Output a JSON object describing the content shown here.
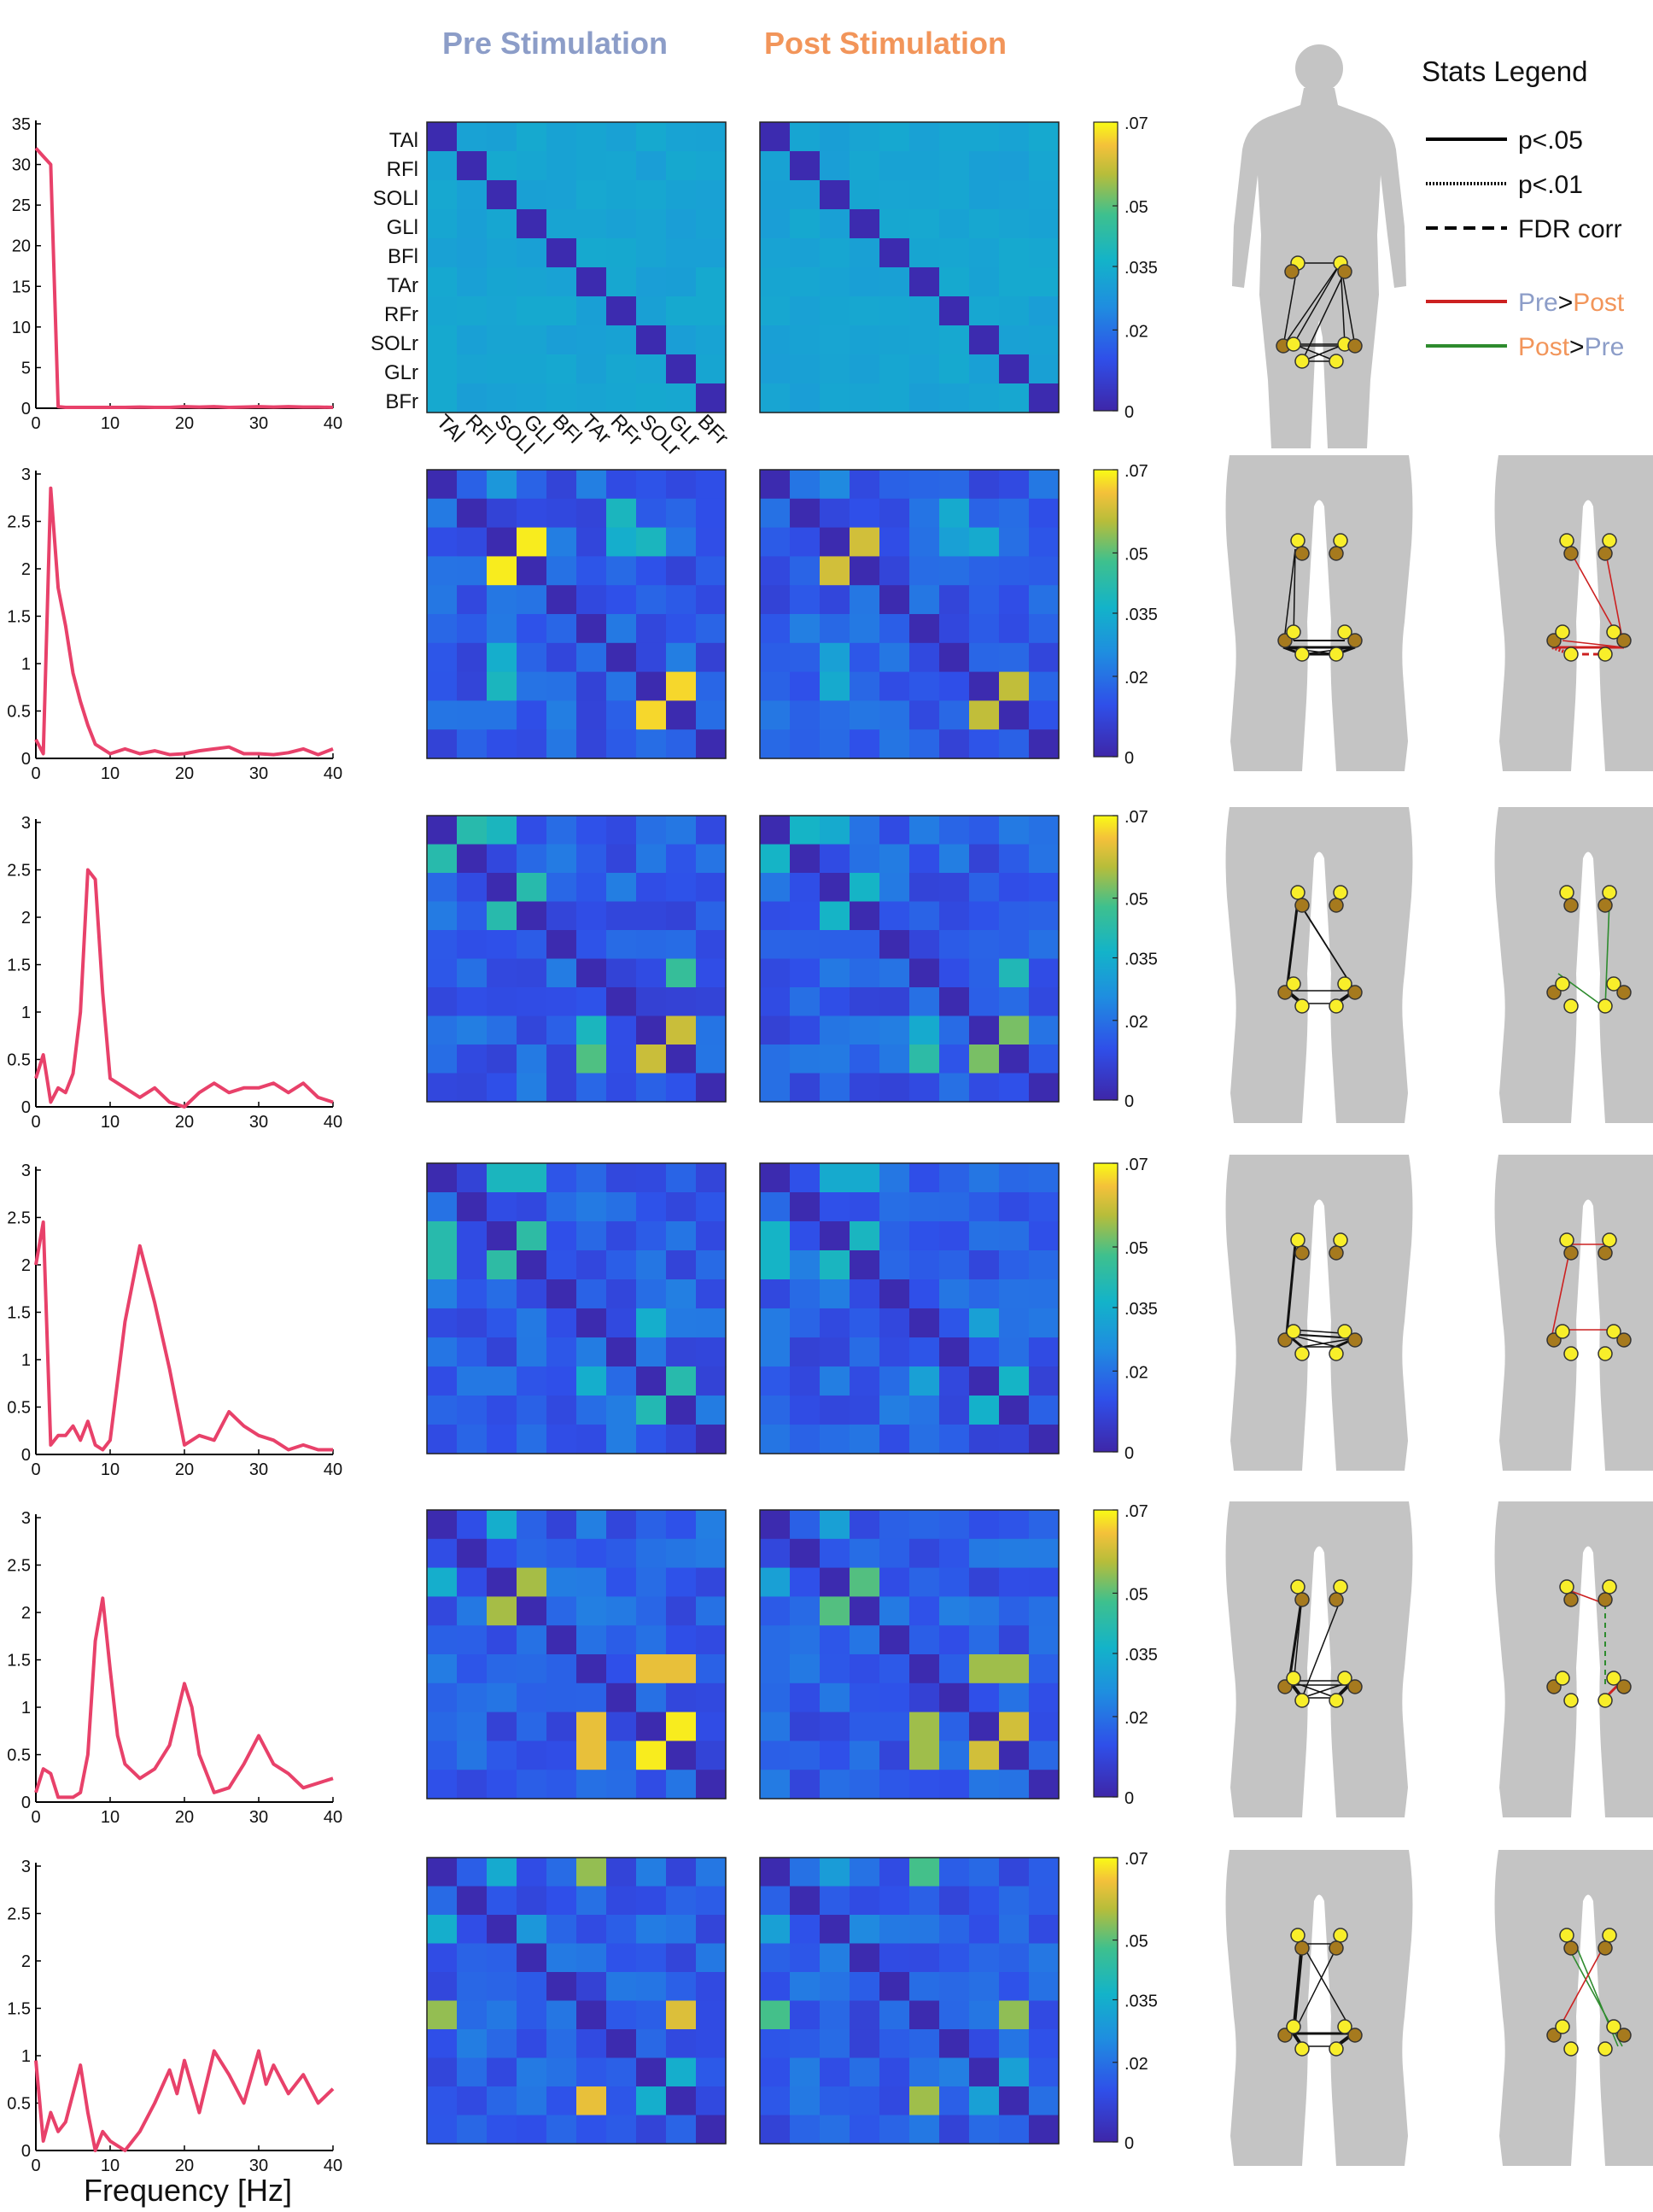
{
  "headers": {
    "pre": "Pre Stimulation",
    "post": "Post Stimulation"
  },
  "colors": {
    "pre_header": "#8c9dc8",
    "post_header": "#f2955a",
    "spectrum": "#e8416a",
    "body": "#c4c4c4",
    "node_dark": "#a67a1e",
    "node_light": "#f8ee2a",
    "red": "#cc2020",
    "green": "#2e8b2e"
  },
  "legend": {
    "title": "Stats Legend",
    "solid": "p<.05",
    "dotted": "p<.01",
    "dashed": "FDR corr",
    "red_a": "Pre",
    "red_sep": ">",
    "red_b": "Post",
    "green_a": "Post",
    "green_sep": ">",
    "green_b": "Pre"
  },
  "muscles": [
    "TAl",
    "RFl",
    "SOLl",
    "GLl",
    "BFl",
    "TAr",
    "RFr",
    "SOLr",
    "GLr",
    "BFr"
  ],
  "colorbar": {
    "ticks": [
      ".07",
      ".05",
      ".035",
      ".02",
      "0"
    ]
  },
  "xlabel": "Frequency [Hz]",
  "chart_data": [
    {
      "type": "line",
      "x": [
        0,
        1,
        2,
        3,
        4,
        5,
        6,
        7,
        8,
        9,
        10,
        12,
        14,
        16,
        18,
        20,
        22,
        24,
        26,
        28,
        30,
        32,
        34,
        36,
        38,
        40
      ],
      "y": [
        32,
        31,
        30,
        0.2,
        0.1,
        0.1,
        0.1,
        0.1,
        0.1,
        0.1,
        0.1,
        0.1,
        0.15,
        0.1,
        0.1,
        0.2,
        0.15,
        0.2,
        0.1,
        0.15,
        0.2,
        0.15,
        0.2,
        0.15,
        0.15,
        0.1
      ],
      "ylim": [
        0,
        35
      ],
      "yticks": [
        "0",
        "5",
        "10",
        "15",
        "20",
        "25",
        "30",
        "35"
      ],
      "xticks": [
        "0",
        "10",
        "20",
        "30",
        "40"
      ]
    },
    {
      "type": "line",
      "x": [
        0,
        1,
        2,
        3,
        4,
        5,
        6,
        7,
        8,
        9,
        10,
        12,
        14,
        16,
        18,
        20,
        22,
        24,
        26,
        28,
        30,
        32,
        34,
        36,
        38,
        40
      ],
      "y": [
        0.2,
        0.05,
        2.85,
        1.8,
        1.4,
        0.9,
        0.6,
        0.35,
        0.15,
        0.1,
        0.05,
        0.1,
        0.05,
        0.08,
        0.04,
        0.05,
        0.08,
        0.1,
        0.12,
        0.05,
        0.05,
        0.04,
        0.06,
        0.1,
        0.04,
        0.1
      ],
      "ylim": [
        0,
        3
      ],
      "yticks": [
        "0",
        "0.5",
        "1",
        "1.5",
        "2",
        "2.5",
        "3"
      ],
      "xticks": [
        "0",
        "10",
        "20",
        "30",
        "40"
      ]
    },
    {
      "type": "line",
      "x": [
        0,
        1,
        2,
        3,
        4,
        5,
        6,
        7,
        8,
        9,
        10,
        12,
        14,
        16,
        18,
        20,
        22,
        24,
        26,
        28,
        30,
        32,
        34,
        36,
        38,
        40
      ],
      "y": [
        0.3,
        0.55,
        0.05,
        0.2,
        0.15,
        0.35,
        1.0,
        2.5,
        2.4,
        1.2,
        0.3,
        0.2,
        0.1,
        0.2,
        0.05,
        0.0,
        0.15,
        0.25,
        0.15,
        0.2,
        0.2,
        0.25,
        0.15,
        0.25,
        0.1,
        0.05
      ],
      "ylim": [
        0,
        3
      ],
      "yticks": [
        "0",
        "0.5",
        "1",
        "1.5",
        "2",
        "2.5",
        "3"
      ],
      "xticks": [
        "0",
        "10",
        "20",
        "30",
        "40"
      ]
    },
    {
      "type": "line",
      "x": [
        0,
        1,
        2,
        3,
        4,
        5,
        6,
        7,
        8,
        9,
        10,
        12,
        14,
        16,
        18,
        20,
        22,
        24,
        26,
        28,
        30,
        32,
        34,
        36,
        38,
        40
      ],
      "y": [
        2.0,
        2.45,
        0.1,
        0.2,
        0.2,
        0.3,
        0.15,
        0.35,
        0.1,
        0.05,
        0.15,
        1.4,
        2.2,
        1.6,
        0.9,
        0.1,
        0.2,
        0.15,
        0.45,
        0.3,
        0.2,
        0.15,
        0.05,
        0.1,
        0.05,
        0.05
      ],
      "ylim": [
        0,
        3
      ],
      "yticks": [
        "0",
        "0.5",
        "1",
        "1.5",
        "2",
        "2.5",
        "3"
      ],
      "xticks": [
        "0",
        "10",
        "20",
        "30",
        "40"
      ]
    },
    {
      "type": "line",
      "x": [
        0,
        1,
        2,
        3,
        4,
        5,
        6,
        7,
        8,
        9,
        10,
        11,
        12,
        14,
        16,
        18,
        20,
        21,
        22,
        24,
        26,
        28,
        30,
        31,
        32,
        34,
        36,
        38,
        40
      ],
      "y": [
        0.1,
        0.35,
        0.3,
        0.05,
        0.05,
        0.05,
        0.1,
        0.5,
        1.7,
        2.15,
        1.4,
        0.7,
        0.4,
        0.25,
        0.35,
        0.6,
        1.25,
        1.0,
        0.5,
        0.1,
        0.15,
        0.4,
        0.7,
        0.55,
        0.4,
        0.3,
        0.15,
        0.2,
        0.25
      ],
      "ylim": [
        0,
        3
      ],
      "yticks": [
        "0",
        "0.5",
        "1",
        "1.5",
        "2",
        "2.5",
        "3"
      ],
      "xticks": [
        "0",
        "10",
        "20",
        "30",
        "40"
      ]
    },
    {
      "type": "line",
      "x": [
        0,
        1,
        2,
        3,
        4,
        5,
        6,
        7,
        8,
        9,
        10,
        12,
        14,
        16,
        18,
        19,
        20,
        22,
        24,
        26,
        28,
        30,
        31,
        32,
        34,
        36,
        38,
        40
      ],
      "y": [
        0.95,
        0.1,
        0.4,
        0.2,
        0.3,
        0.6,
        0.9,
        0.4,
        0.0,
        0.2,
        0.1,
        0.0,
        0.2,
        0.5,
        0.85,
        0.6,
        0.95,
        0.4,
        1.05,
        0.8,
        0.5,
        1.05,
        0.7,
        0.9,
        0.6,
        0.8,
        0.5,
        0.65
      ],
      "ylim": [
        0,
        3
      ],
      "yticks": [
        "0",
        "0.5",
        "1",
        "1.5",
        "2",
        "2.5",
        "3"
      ],
      "xticks": [
        "0",
        "10",
        "20",
        "30",
        "40"
      ]
    }
  ]
}
